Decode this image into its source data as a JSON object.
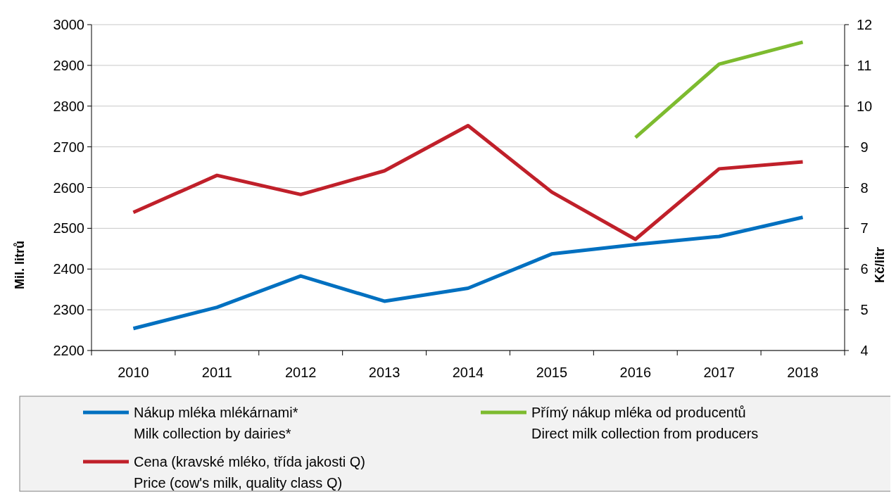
{
  "chart_data": {
    "type": "line",
    "ylabel": "Mil. litrů",
    "y2label": "Kč/litr",
    "categories": [
      "2010",
      "2011",
      "2012",
      "2013",
      "2014",
      "2015",
      "2016",
      "2017",
      "2018"
    ],
    "series": [
      {
        "name": "Nákup mléka mlékárnami*\nMilk collection by dairies*",
        "color": "#0070c0",
        "values": [
          2254,
          2306,
          2383,
          2321,
          2353,
          2437,
          2460,
          2480,
          2527
        ]
      },
      {
        "name": "Cena (kravské mléko, třída jakosti Q)\nPrice (cow's milk, quality class Q)",
        "color": "#c0202a",
        "axis": "y2",
        "values": [
          7.39,
          8.3,
          7.83,
          8.41,
          9.52,
          7.89,
          6.73,
          8.46,
          8.63
        ]
      },
      {
        "name": "Přímý nákup mléka od producentů\nDirect milk collection from producers",
        "color": "#7dbb2f",
        "axis": "y2",
        "values": [
          null,
          null,
          null,
          null,
          null,
          null,
          9.23,
          11.03,
          11.57
        ]
      }
    ],
    "ylim": [
      2200,
      3000
    ],
    "yticks": [
      2200,
      2300,
      2400,
      2500,
      2600,
      2700,
      2800,
      2900,
      3000
    ],
    "y2lim": [
      4,
      12
    ],
    "y2ticks": [
      4,
      5,
      6,
      7,
      8,
      9,
      10,
      11,
      12
    ],
    "grid": "y",
    "legend": "bottom",
    "line_style": "solid"
  }
}
